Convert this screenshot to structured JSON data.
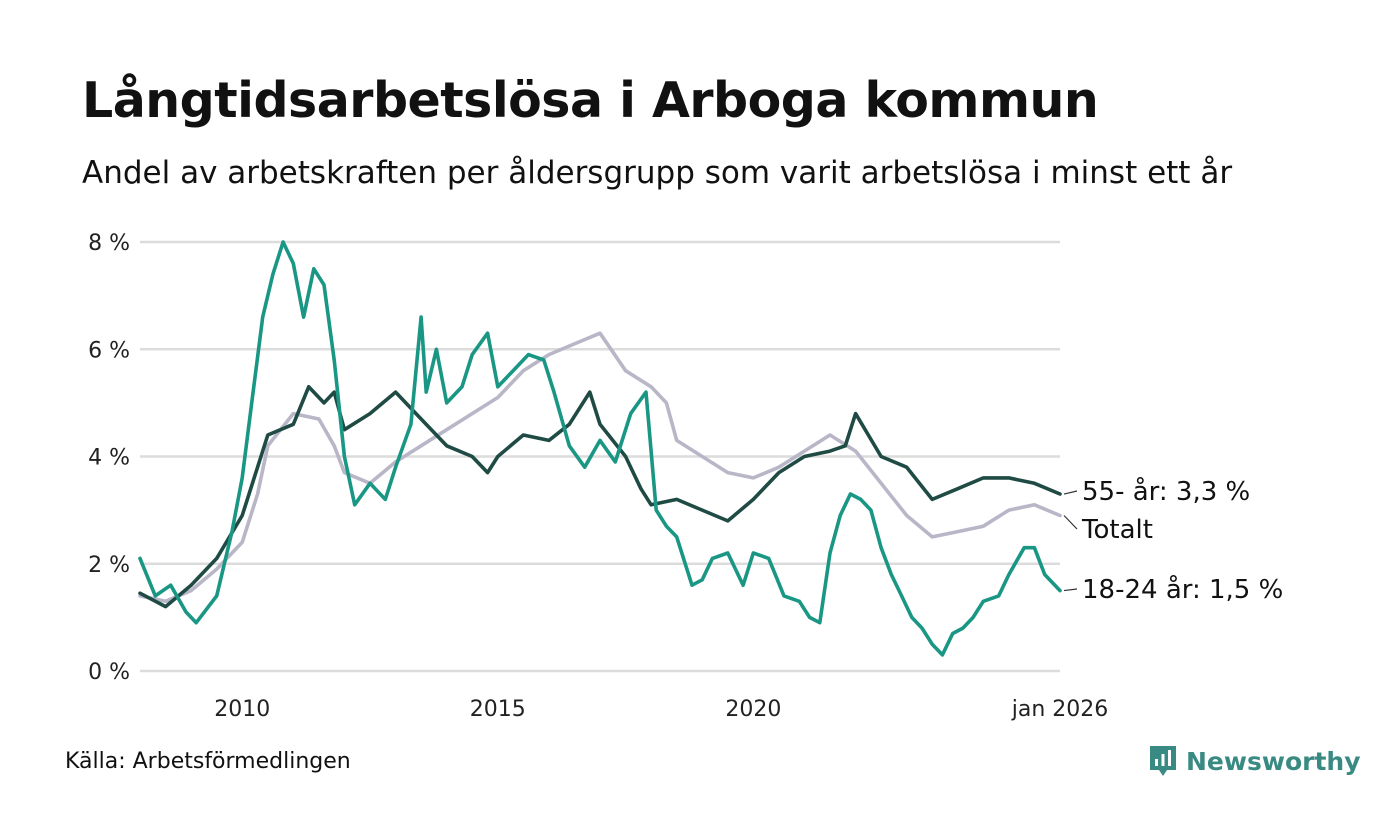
{
  "title": "Långtidsarbetslösa i Arboga kommun",
  "subtitle": "Andel av arbetskraften per åldersgrupp som varit arbetslösa i minst ett år",
  "source": "Källa: Arbetsförmedlingen",
  "brand": {
    "name": "Newsworthy",
    "icon": "newsworthy-chart-logo-icon"
  },
  "colors": {
    "series_55": "#1f4b44",
    "series_total": "#b9b6c7",
    "series_1824": "#1a9784",
    "grid": "#dcdcdc",
    "brand": "#3a8a84"
  },
  "chart_data": {
    "type": "line",
    "title": "Långtidsarbetslösa i Arboga kommun",
    "xlabel": "",
    "ylabel": "",
    "xlim": [
      2008.0,
      2026.0
    ],
    "ylim": [
      0,
      8
    ],
    "yticks": [
      0,
      2,
      4,
      6,
      8
    ],
    "ytick_labels": [
      "0 %",
      "2 %",
      "4 %",
      "6 %",
      "8 %"
    ],
    "xticks": [
      2010,
      2015,
      2020,
      2026
    ],
    "xtick_labels": [
      "2010",
      "2015",
      "2020",
      "jan 2026"
    ],
    "grid": true,
    "series": [
      {
        "key": "series_total",
        "name": "Totalt",
        "label": "Totalt",
        "x": [
          2008.0,
          2008.5,
          2009.0,
          2009.5,
          2010.0,
          2010.3,
          2010.5,
          2011.0,
          2011.5,
          2011.8,
          2012.0,
          2012.5,
          2013.0,
          2013.5,
          2014.0,
          2014.5,
          2015.0,
          2015.5,
          2016.0,
          2016.5,
          2017.0,
          2017.5,
          2018.0,
          2018.3,
          2018.5,
          2019.0,
          2019.5,
          2020.0,
          2020.5,
          2021.0,
          2021.5,
          2022.0,
          2022.5,
          2023.0,
          2023.5,
          2024.0,
          2024.5,
          2025.0,
          2025.5,
          2026.0
        ],
        "values": [
          1.4,
          1.3,
          1.5,
          1.9,
          2.4,
          3.3,
          4.2,
          4.8,
          4.7,
          4.2,
          3.7,
          3.5,
          3.9,
          4.2,
          4.5,
          4.8,
          5.1,
          5.6,
          5.9,
          6.1,
          6.3,
          5.6,
          5.3,
          5.0,
          4.3,
          4.0,
          3.7,
          3.6,
          3.8,
          4.1,
          4.4,
          4.1,
          3.5,
          2.9,
          2.5,
          2.6,
          2.7,
          3.0,
          3.1,
          2.9
        ]
      },
      {
        "key": "series_55",
        "name": "55- år",
        "label": "55- år: 3,3 %",
        "x": [
          2008.0,
          2008.5,
          2009.0,
          2009.5,
          2010.0,
          2010.5,
          2011.0,
          2011.3,
          2011.6,
          2011.8,
          2012.0,
          2012.5,
          2013.0,
          2013.5,
          2014.0,
          2014.5,
          2014.8,
          2015.0,
          2015.5,
          2016.0,
          2016.4,
          2016.8,
          2017.0,
          2017.5,
          2017.8,
          2018.0,
          2018.5,
          2019.0,
          2019.5,
          2020.0,
          2020.5,
          2021.0,
          2021.5,
          2021.8,
          2022.0,
          2022.5,
          2023.0,
          2023.5,
          2024.0,
          2024.5,
          2025.0,
          2025.5,
          2026.0
        ],
        "values": [
          1.45,
          1.2,
          1.6,
          2.1,
          2.9,
          4.4,
          4.6,
          5.3,
          5.0,
          5.2,
          4.5,
          4.8,
          5.2,
          4.7,
          4.2,
          4.0,
          3.7,
          4.0,
          4.4,
          4.3,
          4.6,
          5.2,
          4.6,
          4.0,
          3.4,
          3.1,
          3.2,
          3.0,
          2.8,
          3.2,
          3.7,
          4.0,
          4.1,
          4.2,
          4.8,
          4.0,
          3.8,
          3.2,
          3.4,
          3.6,
          3.6,
          3.5,
          3.3
        ]
      },
      {
        "key": "series_1824",
        "name": "18-24 år",
        "label": "18-24 år: 1,5 %",
        "x": [
          2008.0,
          2008.3,
          2008.6,
          2008.9,
          2009.1,
          2009.5,
          2009.8,
          2010.0,
          2010.2,
          2010.4,
          2010.6,
          2010.8,
          2011.0,
          2011.2,
          2011.4,
          2011.6,
          2011.8,
          2012.0,
          2012.2,
          2012.5,
          2012.8,
          2013.0,
          2013.3,
          2013.5,
          2013.6,
          2013.8,
          2014.0,
          2014.3,
          2014.5,
          2014.8,
          2015.0,
          2015.3,
          2015.6,
          2015.9,
          2016.1,
          2016.4,
          2016.7,
          2017.0,
          2017.3,
          2017.6,
          2017.9,
          2018.1,
          2018.3,
          2018.5,
          2018.8,
          2019.0,
          2019.2,
          2019.5,
          2019.8,
          2020.0,
          2020.3,
          2020.6,
          2020.9,
          2021.1,
          2021.3,
          2021.5,
          2021.7,
          2021.9,
          2022.1,
          2022.3,
          2022.5,
          2022.7,
          2022.9,
          2023.1,
          2023.3,
          2023.5,
          2023.7,
          2023.9,
          2024.1,
          2024.3,
          2024.5,
          2024.8,
          2025.0,
          2025.3,
          2025.5,
          2025.7,
          2025.9,
          2026.0
        ],
        "values": [
          2.1,
          1.4,
          1.6,
          1.1,
          0.9,
          1.4,
          2.6,
          3.6,
          5.1,
          6.6,
          7.4,
          8.0,
          7.6,
          6.6,
          7.5,
          7.2,
          5.8,
          4.0,
          3.1,
          3.5,
          3.2,
          3.8,
          4.6,
          6.6,
          5.2,
          6.0,
          5.0,
          5.3,
          5.9,
          6.3,
          5.3,
          5.6,
          5.9,
          5.8,
          5.2,
          4.2,
          3.8,
          4.3,
          3.9,
          4.8,
          5.2,
          3.0,
          2.7,
          2.5,
          1.6,
          1.7,
          2.1,
          2.2,
          1.6,
          2.2,
          2.1,
          1.4,
          1.3,
          1.0,
          0.9,
          2.2,
          2.9,
          3.3,
          3.2,
          3.0,
          2.3,
          1.8,
          1.4,
          1.0,
          0.8,
          0.5,
          0.3,
          0.7,
          0.8,
          1.0,
          1.3,
          1.4,
          1.8,
          2.3,
          2.3,
          1.8,
          1.6,
          1.5
        ]
      }
    ]
  }
}
